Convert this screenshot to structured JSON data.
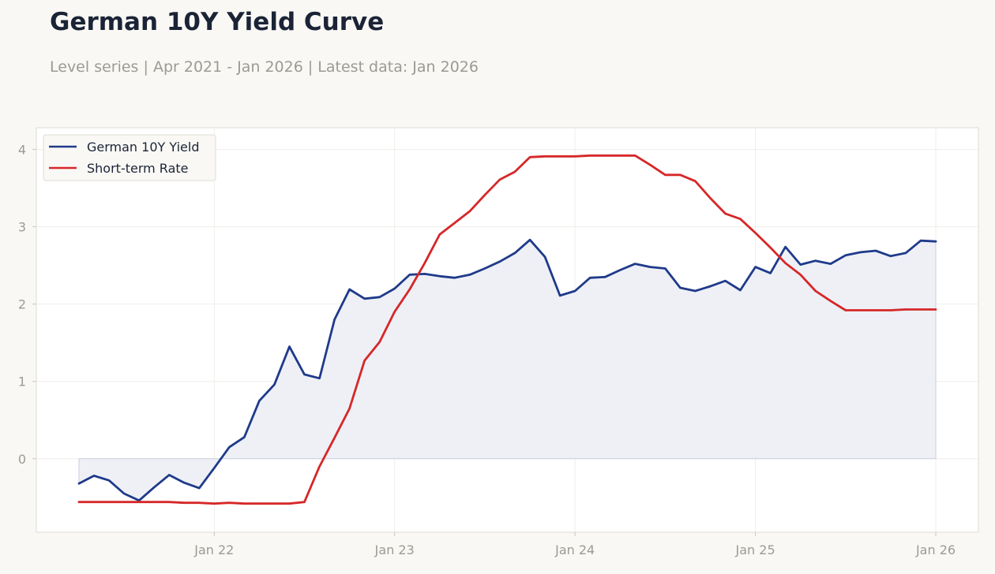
{
  "title": "German 10Y Yield Curve",
  "subtitle": "Level series | Apr 2021 - Jan 2026 | Latest data: Jan 2026",
  "colors": {
    "background": "#f9f8f5",
    "plot_background": "#ffffff",
    "yield": "#1f3a8a",
    "short_rate": "#d62728",
    "fill": "#eceef5"
  },
  "chart_data": {
    "type": "line",
    "title": "German 10Y Yield Curve",
    "xlabel": "",
    "ylabel": "",
    "ylim": [
      -0.95,
      4.28
    ],
    "grid": true,
    "legend_position": "top-left",
    "x_tick_labels": [
      "Jan 22",
      "Jan 23",
      "Jan 24",
      "Jan 25",
      "Jan 26"
    ],
    "y_tick_labels": [
      "0",
      "1",
      "2",
      "3",
      "4"
    ],
    "x": [
      "2021-04",
      "2021-05",
      "2021-06",
      "2021-07",
      "2021-08",
      "2021-09",
      "2021-10",
      "2021-11",
      "2021-12",
      "2022-01",
      "2022-02",
      "2022-03",
      "2022-04",
      "2022-05",
      "2022-06",
      "2022-07",
      "2022-08",
      "2022-09",
      "2022-10",
      "2022-11",
      "2022-12",
      "2023-01",
      "2023-02",
      "2023-03",
      "2023-04",
      "2023-05",
      "2023-06",
      "2023-07",
      "2023-08",
      "2023-09",
      "2023-10",
      "2023-11",
      "2023-12",
      "2024-01",
      "2024-02",
      "2024-03",
      "2024-04",
      "2024-05",
      "2024-06",
      "2024-07",
      "2024-08",
      "2024-09",
      "2024-10",
      "2024-11",
      "2024-12",
      "2025-01",
      "2025-02",
      "2025-03",
      "2025-04",
      "2025-05",
      "2025-06",
      "2025-07",
      "2025-08",
      "2025-09",
      "2025-10",
      "2025-11",
      "2025-12",
      "2026-01"
    ],
    "series": [
      {
        "name": "German 10Y Yield",
        "fill_to_zero": true,
        "values": [
          -0.32,
          -0.22,
          -0.28,
          -0.45,
          -0.54,
          -0.37,
          -0.21,
          -0.31,
          -0.38,
          -0.12,
          0.15,
          0.28,
          0.75,
          0.96,
          1.45,
          1.09,
          1.04,
          1.8,
          2.19,
          2.07,
          2.09,
          2.2,
          2.38,
          2.39,
          2.36,
          2.34,
          2.38,
          2.46,
          2.55,
          2.66,
          2.83,
          2.61,
          2.11,
          2.17,
          2.34,
          2.35,
          2.44,
          2.52,
          2.48,
          2.46,
          2.21,
          2.17,
          2.23,
          2.3,
          2.18,
          2.48,
          2.4,
          2.74,
          2.51,
          2.56,
          2.52,
          2.63,
          2.67,
          2.69,
          2.62,
          2.66,
          2.82,
          2.81
        ]
      },
      {
        "name": "Short-term Rate",
        "values": [
          -0.56,
          -0.56,
          -0.56,
          -0.56,
          -0.56,
          -0.56,
          -0.56,
          -0.57,
          -0.57,
          -0.58,
          -0.57,
          -0.58,
          -0.58,
          -0.58,
          -0.58,
          -0.56,
          -0.1,
          0.27,
          0.65,
          1.27,
          1.51,
          1.9,
          2.19,
          2.53,
          2.9,
          3.05,
          3.2,
          3.41,
          3.61,
          3.71,
          3.9,
          3.91,
          3.91,
          3.91,
          3.92,
          3.92,
          3.92,
          3.92,
          3.8,
          3.67,
          3.67,
          3.59,
          3.37,
          3.17,
          3.1,
          2.92,
          2.73,
          2.53,
          2.38,
          2.17,
          2.04,
          1.92,
          1.92,
          1.92,
          1.92,
          1.93,
          1.93,
          1.93
        ]
      }
    ]
  }
}
